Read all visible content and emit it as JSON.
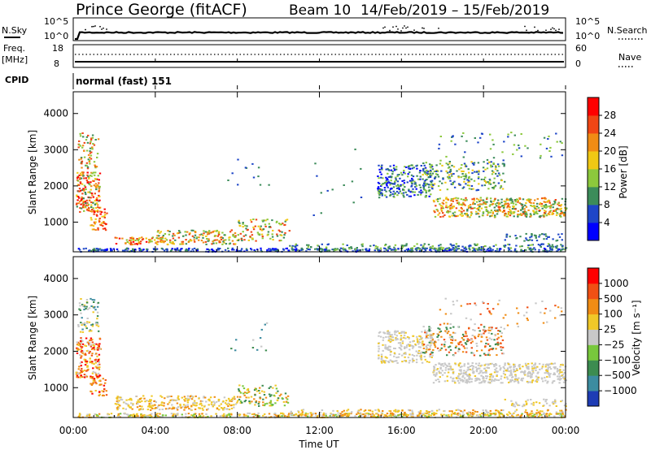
{
  "header": {
    "station": "Prince George (fitACF)",
    "beam": "Beam 10",
    "date_range": "14/Feb/2019 – 15/Feb/2019"
  },
  "strips": {
    "nsky_label": "N.Sky",
    "nsky_ticks": [
      "10^5",
      "10^0"
    ],
    "nsearch_label": "N.Search",
    "nsearch_ticks": [
      "10^5",
      "10^0"
    ],
    "freq_label_1": "Freq.",
    "freq_label_2": "[MHz]",
    "freq_ticks": [
      "18",
      "8"
    ],
    "nave_label": "Nave",
    "nave_ticks": [
      "60",
      "0"
    ],
    "cpid_label": "CPID",
    "cpid_value": "normal (fast) 151"
  },
  "chart_data": [
    {
      "type": "heatmap",
      "panel": "power",
      "ylabel": "Slant Range [km]",
      "yticks": [
        1000,
        2000,
        3000,
        4000
      ],
      "ylim": [
        180,
        4600
      ],
      "xticks": [
        "00:00",
        "04:00",
        "08:00",
        "12:00",
        "16:00",
        "20:00",
        "00:00"
      ],
      "xlim_hours": [
        0,
        24
      ],
      "colorbar": {
        "label": "Power [dB]",
        "ticks": [
          "28",
          "24",
          "20",
          "16",
          "12",
          "8",
          "4"
        ],
        "tick_values": [
          28,
          24,
          20,
          16,
          12,
          8,
          4
        ],
        "colors": [
          "#0000ff",
          "#1e46c8",
          "#3c8c5a",
          "#8cc83c",
          "#f0c814",
          "#f08c14",
          "#f04614",
          "#ff0000"
        ]
      }
    },
    {
      "type": "heatmap",
      "panel": "velocity",
      "ylabel": "Slant Range [km]",
      "yticks": [
        1000,
        2000,
        3000,
        4000
      ],
      "ylim": [
        180,
        4600
      ],
      "xticks": [
        "00:00",
        "04:00",
        "08:00",
        "12:00",
        "16:00",
        "20:00",
        "00:00"
      ],
      "xlim_hours": [
        0,
        24
      ],
      "xlabel": "Time UT",
      "colorbar": {
        "label": "Velocity [m s⁻¹]",
        "ticks": [
          "1000",
          "500",
          "100",
          "25",
          "−25",
          "−100",
          "−500",
          "−1000"
        ],
        "colors": [
          "#1e3cb4",
          "#3c8ca0",
          "#3c8c50",
          "#78c83c",
          "#c8c8c8",
          "#f0c828",
          "#f08c14",
          "#f05014",
          "#ff0000"
        ]
      }
    }
  ]
}
